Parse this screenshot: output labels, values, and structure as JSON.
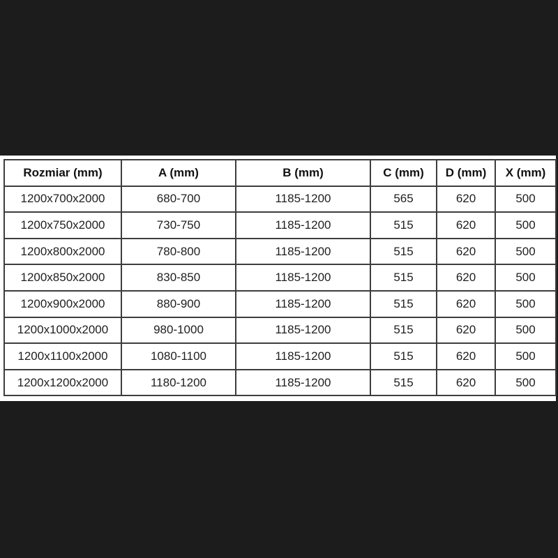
{
  "page": {
    "background_color": "#1c1c1c",
    "panel_color": "#ffffff",
    "border_color": "#3d3d3d",
    "text_color": "#1f1f1f"
  },
  "chart_data": {
    "type": "table",
    "title": "",
    "columns": [
      "Rozmiar (mm)",
      "A (mm)",
      "B (mm)",
      "C (mm)",
      "D (mm)",
      "X (mm)"
    ],
    "rows": [
      [
        "1200x700x2000",
        "680-700",
        "1185-1200",
        "565",
        "620",
        "500"
      ],
      [
        "1200x750x2000",
        "730-750",
        "1185-1200",
        "515",
        "620",
        "500"
      ],
      [
        "1200x800x2000",
        "780-800",
        "1185-1200",
        "515",
        "620",
        "500"
      ],
      [
        "1200x850x2000",
        "830-850",
        "1185-1200",
        "515",
        "620",
        "500"
      ],
      [
        "1200x900x2000",
        "880-900",
        "1185-1200",
        "515",
        "620",
        "500"
      ],
      [
        "1200x1000x2000",
        "980-1000",
        "1185-1200",
        "515",
        "620",
        "500"
      ],
      [
        "1200x1100x2000",
        "1080-1100",
        "1185-1200",
        "515",
        "620",
        "500"
      ],
      [
        "1200x1200x2000",
        "1180-1200",
        "1185-1200",
        "515",
        "620",
        "500"
      ]
    ]
  }
}
